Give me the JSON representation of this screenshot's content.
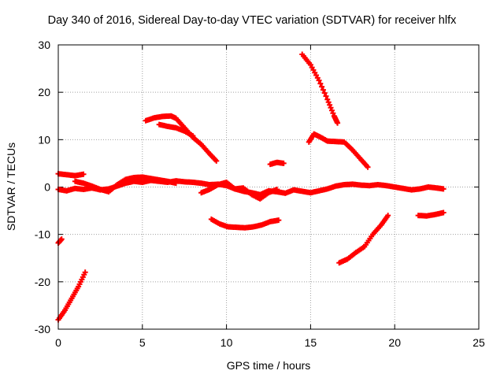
{
  "chart_data": {
    "type": "scatter",
    "title": "Day 340 of 2016, Sidereal Day-to-day VTEC variation (SDTVAR) for receiver hlfx",
    "xlabel": "GPS time / hours",
    "ylabel": "SDTVAR / TECUs",
    "xlim": [
      0,
      25
    ],
    "ylim": [
      -30,
      30
    ],
    "xticks": [
      0,
      5,
      10,
      15,
      20,
      25
    ],
    "yticks": [
      -30,
      -20,
      -10,
      0,
      10,
      20,
      30
    ],
    "xtick_labels": [
      "0",
      "5",
      "10",
      "15",
      "20",
      "25"
    ],
    "ytick_labels": [
      "-30",
      "-20",
      "-10",
      "0",
      "10",
      "20",
      "30"
    ],
    "grid": true,
    "marker": "plus",
    "color": "#ff0000",
    "series": [
      {
        "x": [
          0.0,
          0.4,
          0.8,
          1.2,
          1.6
        ],
        "y": [
          -28.0,
          -26.0,
          -23.5,
          -21.0,
          -18.0
        ]
      },
      {
        "x": [
          0.0,
          0.2
        ],
        "y": [
          -11.8,
          -11.0
        ]
      },
      {
        "x": [
          0.0,
          0.5,
          1.0,
          1.5,
          2.0,
          2.5,
          3.0,
          3.5,
          4.0,
          4.5,
          5.0,
          5.5,
          6.0,
          6.5,
          7.0,
          7.5,
          8.0,
          8.5,
          9.0,
          9.5,
          10.0,
          10.5,
          11.0,
          11.5,
          12.0,
          12.5,
          13.0,
          13.5,
          14.0,
          14.5,
          15.0,
          15.5,
          16.0,
          16.5,
          17.0,
          17.5,
          18.0,
          18.5,
          19.0,
          19.5,
          20.0,
          20.5,
          21.0,
          21.5,
          22.0,
          22.5,
          22.9
        ],
        "y": [
          -0.5,
          -0.8,
          -0.3,
          -0.5,
          -0.2,
          -0.6,
          -0.4,
          0.2,
          0.8,
          1.2,
          1.0,
          1.4,
          1.2,
          1.0,
          1.3,
          1.1,
          1.0,
          0.8,
          0.5,
          0.6,
          0.3,
          -0.4,
          -0.9,
          -1.2,
          -1.6,
          -0.8,
          -1.0,
          -1.3,
          -0.6,
          -0.9,
          -1.2,
          -0.8,
          -0.4,
          0.2,
          0.5,
          0.6,
          0.4,
          0.3,
          0.5,
          0.3,
          0.0,
          -0.3,
          -0.6,
          -0.4,
          0.0,
          -0.2,
          -0.4
        ]
      },
      {
        "x": [
          0.0,
          0.5,
          1.0,
          1.5
        ],
        "y": [
          2.8,
          2.6,
          2.4,
          2.7
        ]
      },
      {
        "x": [
          1.0,
          1.5,
          2.0,
          2.5,
          3.0,
          3.5,
          4.0,
          4.5,
          5.0,
          5.5,
          6.0,
          6.5,
          7.0
        ],
        "y": [
          1.2,
          0.8,
          0.2,
          -0.5,
          -1.0,
          0.5,
          1.6,
          2.0,
          2.1,
          1.8,
          1.5,
          1.2,
          0.8
        ]
      },
      {
        "x": [
          8.5,
          9.0,
          9.5,
          10.0,
          10.5,
          11.0,
          11.5,
          12.0,
          12.5,
          13.0
        ],
        "y": [
          -1.2,
          -0.5,
          0.5,
          1.0,
          -0.4,
          -0.2,
          -1.6,
          -2.5,
          -1.2,
          -0.5
        ]
      },
      {
        "x": [
          5.2,
          5.7,
          6.2,
          6.7,
          7.0,
          7.5,
          8.0,
          8.5,
          9.0,
          9.4
        ],
        "y": [
          14.0,
          14.6,
          14.9,
          15.0,
          14.5,
          12.5,
          10.5,
          9.0,
          7.0,
          5.5
        ]
      },
      {
        "x": [
          6.0,
          6.5,
          7.0,
          7.5,
          8.0
        ],
        "y": [
          13.2,
          12.8,
          12.5,
          11.8,
          10.8
        ]
      },
      {
        "x": [
          9.1,
          9.6,
          10.1,
          10.6,
          11.1,
          11.6,
          12.1,
          12.6,
          13.1
        ],
        "y": [
          -6.8,
          -7.8,
          -8.4,
          -8.5,
          -8.6,
          -8.4,
          -8.0,
          -7.3,
          -7.0
        ]
      },
      {
        "x": [
          12.6,
          13.0,
          13.4
        ],
        "y": [
          4.8,
          5.2,
          5.0
        ]
      },
      {
        "x": [
          14.5,
          15.0,
          15.5,
          16.0,
          16.4,
          16.6
        ],
        "y": [
          28.0,
          25.8,
          22.5,
          18.5,
          15.0,
          13.5
        ]
      },
      {
        "x": [
          14.9,
          15.2,
          15.6,
          16.0,
          16.5,
          17.0,
          17.5,
          18.0,
          18.4
        ],
        "y": [
          9.5,
          11.2,
          10.5,
          9.7,
          9.6,
          9.5,
          7.8,
          5.8,
          4.2
        ]
      },
      {
        "x": [
          16.7,
          17.2,
          17.7,
          18.2,
          18.7,
          19.2,
          19.6
        ],
        "y": [
          -16.0,
          -15.2,
          -13.8,
          -12.6,
          -10.0,
          -8.0,
          -6.0
        ]
      },
      {
        "x": [
          21.4,
          21.9,
          22.4,
          22.9
        ],
        "y": [
          -6.0,
          -6.1,
          -5.8,
          -5.4
        ]
      }
    ]
  }
}
